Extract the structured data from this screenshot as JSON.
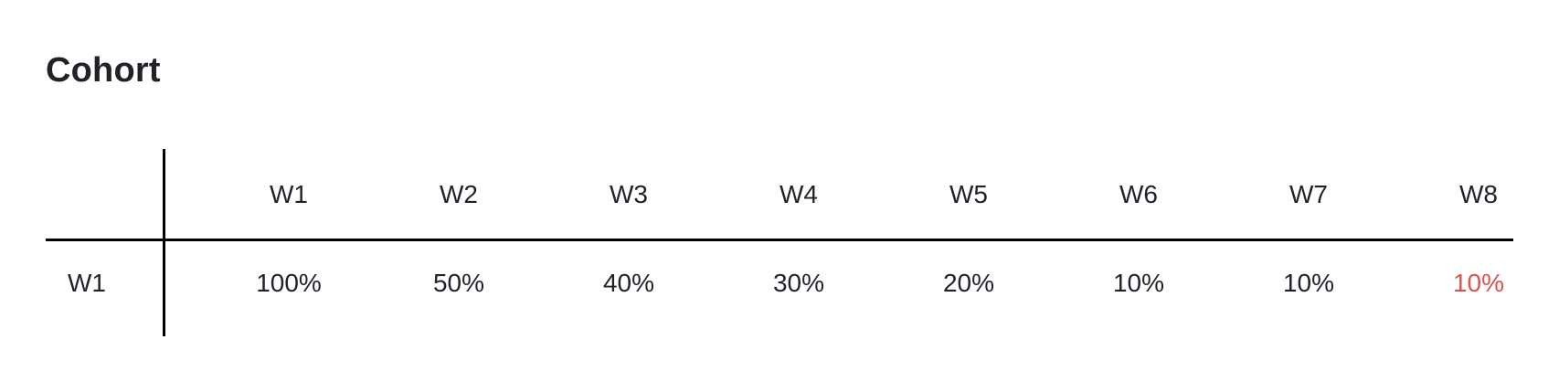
{
  "title": "Cohort",
  "table": {
    "columns": [
      "W1",
      "W2",
      "W3",
      "W4",
      "W5",
      "W6",
      "W7",
      "W8"
    ],
    "rows": [
      {
        "label": "W1",
        "values": [
          "100%",
          "50%",
          "40%",
          "30%",
          "20%",
          "10%",
          "10%",
          "10%"
        ]
      }
    ]
  },
  "colors": {
    "text": "#1f2329",
    "rule": "#000000",
    "alert": "#d9534f"
  }
}
